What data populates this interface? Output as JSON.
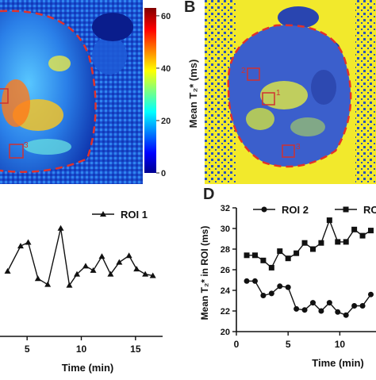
{
  "panels": {
    "b_letter": "B",
    "d_letter": "D"
  },
  "colorbar": {
    "label": "Mean T₂* (ms)",
    "ticks": [
      "60",
      "40",
      "20",
      "0"
    ],
    "tick_values": [
      60,
      40,
      20,
      0
    ],
    "range": [
      0,
      63
    ]
  },
  "roi_labels": {
    "b": [
      "2",
      "1",
      "3"
    ],
    "a": [
      "3"
    ]
  },
  "chart_data": [
    {
      "type": "line",
      "title": "",
      "xlabel": "Time (min)",
      "ylabel": "",
      "x_ticks": [
        "5",
        "10",
        "15"
      ],
      "xlim": [
        2.5,
        17.5
      ],
      "ylim": [
        17,
        35
      ],
      "series": [
        {
          "name": "ROI 1",
          "marker": "triangle",
          "x": [
            3.2,
            4.4,
            5.1,
            6.0,
            6.9,
            8.1,
            8.9,
            9.6,
            10.4,
            11.1,
            11.9,
            12.7,
            13.5,
            14.4,
            15.1,
            15.9,
            16.6
          ],
          "y": [
            25.8,
            29.2,
            29.7,
            24.8,
            24.0,
            31.6,
            23.9,
            25.4,
            26.5,
            25.9,
            27.8,
            25.4,
            27.0,
            27.9,
            26.1,
            25.4,
            25.2
          ]
        }
      ]
    },
    {
      "type": "line",
      "title": "",
      "xlabel": "Time (min)",
      "ylabel": "Mean T₂* in ROI (ms)",
      "x_ticks": [
        "0",
        "5",
        "10"
      ],
      "y_ticks": [
        "20",
        "22",
        "24",
        "26",
        "28",
        "30",
        "32"
      ],
      "xlim": [
        0,
        13.5
      ],
      "ylim": [
        20,
        32
      ],
      "series": [
        {
          "name": "ROI 2",
          "marker": "circle",
          "x": [
            1.0,
            1.8,
            2.6,
            3.4,
            4.2,
            5.0,
            5.8,
            6.6,
            7.4,
            8.2,
            9.0,
            9.8,
            10.6,
            11.4,
            12.2,
            13.0
          ],
          "y": [
            24.9,
            24.9,
            23.5,
            23.7,
            24.4,
            24.3,
            22.2,
            22.1,
            22.8,
            22.0,
            22.8,
            21.9,
            21.6,
            22.5,
            22.5,
            23.6
          ]
        },
        {
          "name": "RO",
          "marker": "square",
          "x": [
            1.0,
            1.8,
            2.6,
            3.4,
            4.2,
            5.0,
            5.8,
            6.6,
            7.4,
            8.2,
            9.0,
            9.8,
            10.6,
            11.4,
            12.2,
            13.0
          ],
          "y": [
            27.4,
            27.4,
            26.9,
            26.2,
            27.8,
            27.1,
            27.6,
            28.6,
            28.0,
            28.6,
            30.8,
            28.7,
            28.7,
            29.9,
            29.3,
            29.8
          ]
        }
      ]
    }
  ]
}
